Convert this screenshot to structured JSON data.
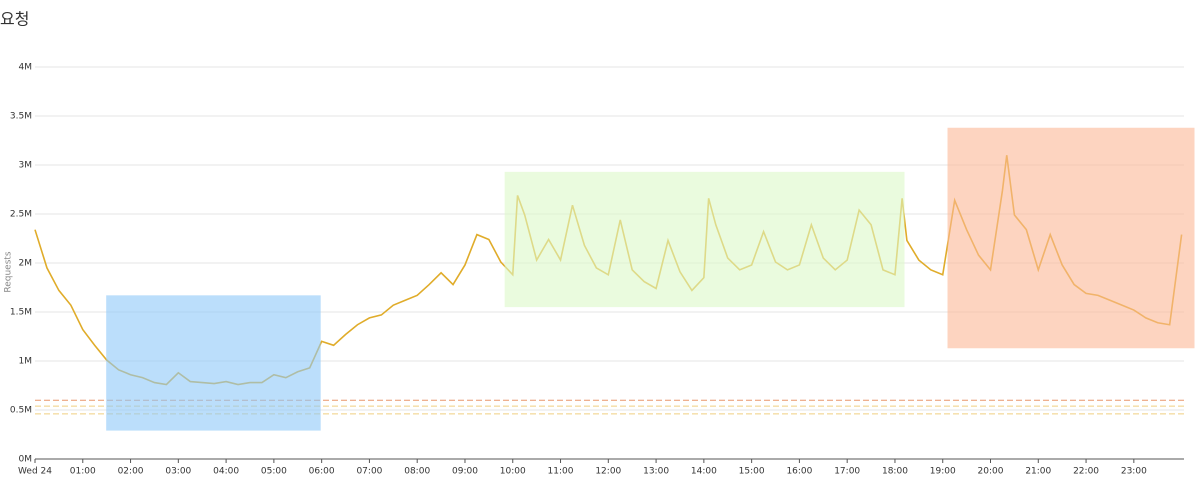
{
  "chart_data": {
    "type": "line",
    "title": "요청",
    "y_label": "Requests",
    "grid": true,
    "xlim": [
      0,
      24.05
    ],
    "ylim": [
      0,
      4000000
    ],
    "xticks": [
      {
        "value": 0,
        "label": "Wed 24"
      },
      {
        "value": 1,
        "label": "01:00"
      },
      {
        "value": 2,
        "label": "02:00"
      },
      {
        "value": 3,
        "label": "03:00"
      },
      {
        "value": 4,
        "label": "04:00"
      },
      {
        "value": 5,
        "label": "05:00"
      },
      {
        "value": 6,
        "label": "06:00"
      },
      {
        "value": 7,
        "label": "07:00"
      },
      {
        "value": 8,
        "label": "08:00"
      },
      {
        "value": 9,
        "label": "09:00"
      },
      {
        "value": 10,
        "label": "10:00"
      },
      {
        "value": 11,
        "label": "11:00"
      },
      {
        "value": 12,
        "label": "12:00"
      },
      {
        "value": 13,
        "label": "13:00"
      },
      {
        "value": 14,
        "label": "14:00"
      },
      {
        "value": 15,
        "label": "15:00"
      },
      {
        "value": 16,
        "label": "16:00"
      },
      {
        "value": 17,
        "label": "17:00"
      },
      {
        "value": 18,
        "label": "18:00"
      },
      {
        "value": 19,
        "label": "19:00"
      },
      {
        "value": 20,
        "label": "20:00"
      },
      {
        "value": 21,
        "label": "21:00"
      },
      {
        "value": 22,
        "label": "22:00"
      },
      {
        "value": 23,
        "label": "23:00"
      }
    ],
    "yticks": [
      {
        "value": 0,
        "label": "0M"
      },
      {
        "value": 500000,
        "label": "0.5M"
      },
      {
        "value": 1000000,
        "label": "1M"
      },
      {
        "value": 1500000,
        "label": "1.5M"
      },
      {
        "value": 2000000,
        "label": "2M"
      },
      {
        "value": 2500000,
        "label": "2.5M"
      },
      {
        "value": 3000000,
        "label": "3M"
      },
      {
        "value": 3500000,
        "label": "3.5M"
      },
      {
        "value": 4000000,
        "label": "4M"
      }
    ],
    "x": [
      0,
      0.25,
      0.5,
      0.75,
      1,
      1.25,
      1.5,
      1.75,
      2,
      2.25,
      2.5,
      2.75,
      3,
      3.25,
      3.5,
      3.75,
      4,
      4.25,
      4.5,
      4.75,
      5,
      5.25,
      5.5,
      5.75,
      6,
      6.25,
      6.5,
      6.75,
      7,
      7.25,
      7.5,
      7.75,
      8,
      8.25,
      8.5,
      8.75,
      9,
      9.25,
      9.5,
      9.75,
      10,
      10.1,
      10.25,
      10.5,
      10.75,
      11,
      11.25,
      11.5,
      11.75,
      12,
      12.25,
      12.5,
      12.75,
      13,
      13.25,
      13.5,
      13.75,
      14,
      14.1,
      14.25,
      14.5,
      14.75,
      15,
      15.25,
      15.5,
      15.75,
      16,
      16.25,
      16.5,
      16.75,
      17,
      17.25,
      17.5,
      17.75,
      18,
      18.15,
      18.25,
      18.5,
      18.75,
      19,
      19.25,
      19.5,
      19.75,
      20,
      20.25,
      20.34,
      20.5,
      20.75,
      21,
      21.25,
      21.5,
      21.75,
      22,
      22.25,
      22.5,
      22.75,
      23,
      23.25,
      23.5,
      23.75,
      24
    ],
    "series": [
      {
        "name": "Requests",
        "color": "#e0ac2a",
        "values": [
          2340000,
          1950000,
          1720000,
          1570000,
          1320000,
          1160000,
          1010000,
          910000,
          860000,
          830000,
          780000,
          760000,
          880000,
          790000,
          780000,
          770000,
          790000,
          760000,
          780000,
          780000,
          860000,
          830000,
          890000,
          930000,
          1200000,
          1160000,
          1270000,
          1370000,
          1440000,
          1470000,
          1570000,
          1620000,
          1670000,
          1780000,
          1900000,
          1780000,
          1980000,
          2290000,
          2240000,
          2010000,
          1880000,
          2690000,
          2490000,
          2030000,
          2240000,
          2030000,
          2590000,
          2180000,
          1950000,
          1880000,
          2440000,
          1930000,
          1810000,
          1740000,
          2230000,
          1910000,
          1720000,
          1850000,
          2660000,
          2390000,
          2050000,
          1930000,
          1980000,
          2320000,
          2010000,
          1930000,
          1980000,
          2390000,
          2050000,
          1930000,
          2030000,
          2540000,
          2390000,
          1930000,
          1880000,
          2660000,
          2230000,
          2030000,
          1930000,
          1880000,
          2640000,
          2340000,
          2080000,
          1930000,
          2740000,
          3100000,
          2490000,
          2340000,
          1930000,
          2290000,
          1980000,
          1780000,
          1690000,
          1670000,
          1620000,
          1570000,
          1520000,
          1440000,
          1390000,
          1370000,
          2290000
        ]
      }
    ],
    "reference_lines": [
      {
        "value": 600000,
        "color": "#e8956b"
      },
      {
        "value": 540000,
        "color": "#f0cf80"
      },
      {
        "value": 460000,
        "color": "#f0cf80"
      }
    ],
    "highlights": [
      {
        "color": "#8ec8f8",
        "xrange": [
          1.49,
          5.98
        ],
        "yrange": [
          290000,
          1670000
        ]
      },
      {
        "color": "#dcf8c8",
        "xrange": [
          9.83,
          18.2
        ],
        "yrange": [
          1550000,
          2930000
        ]
      },
      {
        "color": "#fcb896",
        "xrange": [
          19.1,
          24.27
        ],
        "yrange": [
          1130000,
          3380000
        ]
      }
    ]
  }
}
